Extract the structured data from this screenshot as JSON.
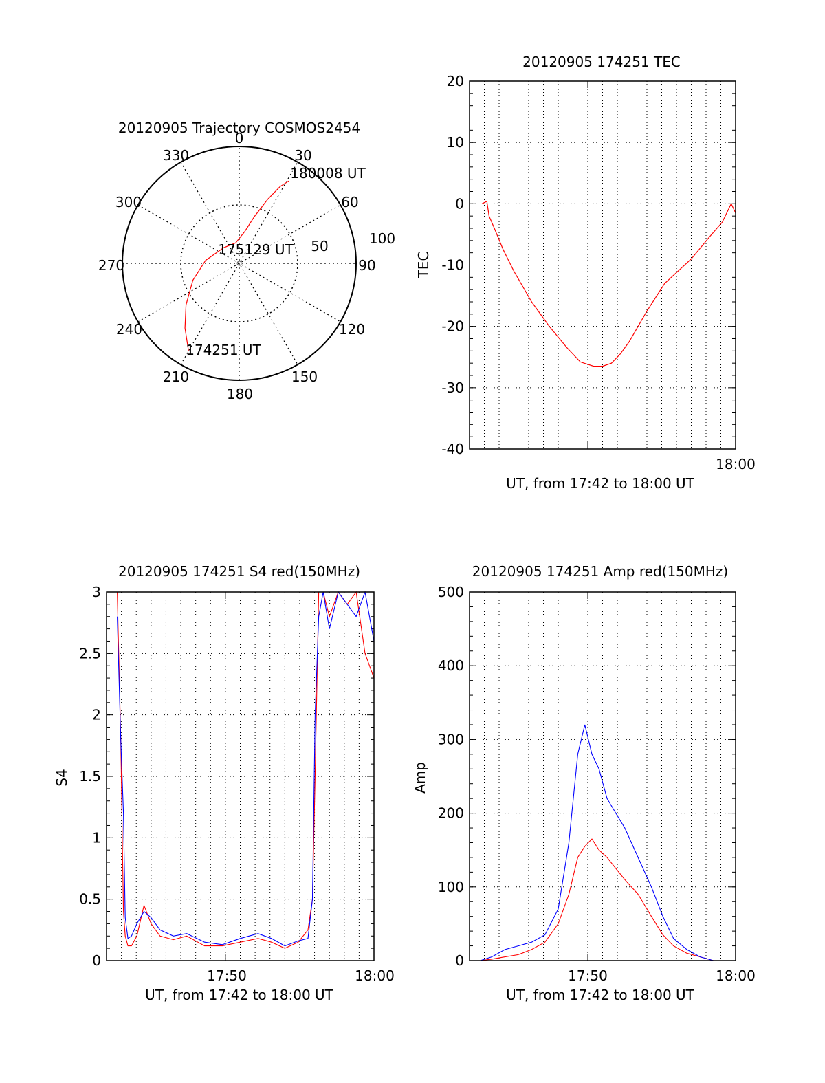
{
  "chart_data": [
    {
      "type": "polar",
      "title": "20120905 Trajectory COSMOS2454",
      "azimuth_labels": [
        "0",
        "30",
        "60",
        "90",
        "120",
        "150",
        "180",
        "210",
        "240",
        "270",
        "300",
        "330"
      ],
      "elevation_labels": [
        "50",
        "100"
      ],
      "annotations": [
        "175129 UT",
        "180008 UT",
        "174251 UT"
      ],
      "series": [
        {
          "color": "#ff0000",
          "points": [
            {
              "az": 210,
              "el": 12
            },
            {
              "az": 220,
              "el": 25
            },
            {
              "az": 232,
              "el": 38
            },
            {
              "az": 250,
              "el": 52
            },
            {
              "az": 275,
              "el": 64
            },
            {
              "az": 315,
              "el": 73
            },
            {
              "az": 350,
              "el": 74
            },
            {
              "az": 10,
              "el": 65
            },
            {
              "az": 18,
              "el": 52
            },
            {
              "az": 24,
              "el": 36
            },
            {
              "az": 28,
              "el": 23
            },
            {
              "az": 31,
              "el": 16
            }
          ]
        }
      ]
    },
    {
      "type": "line",
      "title": "20120905 174251 TEC",
      "xlabel": "UT, from 17:42 to 18:00 UT",
      "ylabel": "TEC",
      "x_tick_labels": [
        "18:00"
      ],
      "y_ticks": [
        20,
        10,
        0,
        -10,
        -20,
        -30,
        -40
      ],
      "xlim": [
        17.7,
        18.0
      ],
      "ylim": [
        -40,
        20
      ],
      "grid": true,
      "series": [
        {
          "color": "#ff0000",
          "x": [
            17.714,
            17.7195,
            17.722,
            17.728,
            17.738,
            17.75,
            17.77,
            17.79,
            17.81,
            17.825,
            17.84,
            17.85,
            17.86,
            17.87,
            17.88,
            17.89,
            17.9,
            17.92,
            17.95,
            17.97,
            17.985,
            17.995,
            18.0
          ],
          "y": [
            0,
            0.4,
            -2,
            -4,
            -7.5,
            -11,
            -16,
            -20,
            -23.5,
            -25.8,
            -26.5,
            -26.5,
            -26,
            -24.5,
            -22.5,
            -20,
            -17.5,
            -13,
            -9,
            -5.5,
            -3,
            0,
            -1.5
          ]
        }
      ]
    },
    {
      "type": "line",
      "title": "20120905 174251 S4 red(150MHz)",
      "xlabel": "UT, from 17:42 to 18:00 UT",
      "ylabel": "S4",
      "x_tick_labels": [
        "17:50",
        "18:00"
      ],
      "y_ticks": [
        0,
        0.5,
        1,
        1.5,
        2,
        2.5,
        3
      ],
      "y_tick_labels": [
        "0",
        "0.5",
        "1",
        "1.5",
        "2",
        "2.5",
        "3"
      ],
      "xlim": [
        17.7,
        18.0
      ],
      "ylim": [
        0,
        3
      ],
      "grid": true,
      "series": [
        {
          "color": "#ff0000",
          "x": [
            17.712,
            17.716,
            17.719,
            17.721,
            17.724,
            17.728,
            17.734,
            17.742,
            17.75,
            17.76,
            17.775,
            17.79,
            17.81,
            17.83,
            17.85,
            17.87,
            17.885,
            17.9,
            17.915,
            17.926,
            17.931,
            17.934,
            17.938,
            17.943,
            17.95,
            17.96,
            17.97,
            17.98,
            17.99,
            18.0
          ],
          "y": [
            3.0,
            1.8,
            0.4,
            0.2,
            0.12,
            0.12,
            0.2,
            0.45,
            0.3,
            0.2,
            0.17,
            0.2,
            0.12,
            0.12,
            0.15,
            0.18,
            0.15,
            0.1,
            0.15,
            0.25,
            0.5,
            1.5,
            3.0,
            3.0,
            2.8,
            3.0,
            2.9,
            3.0,
            2.5,
            2.3
          ]
        },
        {
          "color": "#0000ff",
          "x": [
            17.712,
            17.716,
            17.719,
            17.721,
            17.724,
            17.728,
            17.734,
            17.742,
            17.75,
            17.76,
            17.775,
            17.79,
            17.81,
            17.83,
            17.85,
            17.87,
            17.885,
            17.9,
            17.915,
            17.926,
            17.931,
            17.934,
            17.938,
            17.943,
            17.95,
            17.96,
            17.97,
            17.98,
            17.99,
            18.0
          ],
          "y": [
            2.8,
            1.8,
            1.2,
            0.35,
            0.18,
            0.2,
            0.3,
            0.4,
            0.35,
            0.25,
            0.2,
            0.22,
            0.15,
            0.13,
            0.18,
            0.22,
            0.18,
            0.12,
            0.16,
            0.18,
            0.5,
            2.0,
            2.8,
            3.0,
            2.7,
            3.0,
            2.9,
            2.8,
            3.0,
            2.6
          ]
        }
      ]
    },
    {
      "type": "line",
      "title": "20120905 174251 Amp red(150MHz)",
      "xlabel": "UT, from 17:42 to 18:00 UT",
      "ylabel": "Amp",
      "x_tick_labels": [
        "17:50",
        "18:00"
      ],
      "y_ticks": [
        0,
        100,
        200,
        300,
        400,
        500
      ],
      "xlim": [
        17.7,
        18.0
      ],
      "ylim": [
        0,
        500
      ],
      "grid": true,
      "series": [
        {
          "color": "#ff0000",
          "x": [
            17.712,
            17.725,
            17.74,
            17.755,
            17.77,
            17.785,
            17.8,
            17.812,
            17.822,
            17.83,
            17.838,
            17.846,
            17.855,
            17.865,
            17.875,
            17.89,
            17.905,
            17.918,
            17.93,
            17.945,
            17.96,
            17.975,
            17.99,
            18.0
          ],
          "y": [
            0,
            2,
            5,
            8,
            15,
            25,
            50,
            90,
            140,
            155,
            165,
            150,
            140,
            125,
            110,
            90,
            60,
            35,
            20,
            10,
            5,
            0,
            0,
            0
          ]
        },
        {
          "color": "#0000ff",
          "x": [
            17.712,
            17.725,
            17.74,
            17.755,
            17.77,
            17.785,
            17.8,
            17.812,
            17.822,
            17.83,
            17.838,
            17.846,
            17.855,
            17.865,
            17.875,
            17.89,
            17.905,
            17.918,
            17.93,
            17.945,
            17.96,
            17.975,
            17.99,
            18.0
          ],
          "y": [
            0,
            5,
            15,
            20,
            25,
            35,
            70,
            160,
            280,
            320,
            280,
            260,
            220,
            200,
            180,
            140,
            100,
            60,
            30,
            15,
            5,
            0,
            0,
            0
          ]
        }
      ]
    }
  ]
}
